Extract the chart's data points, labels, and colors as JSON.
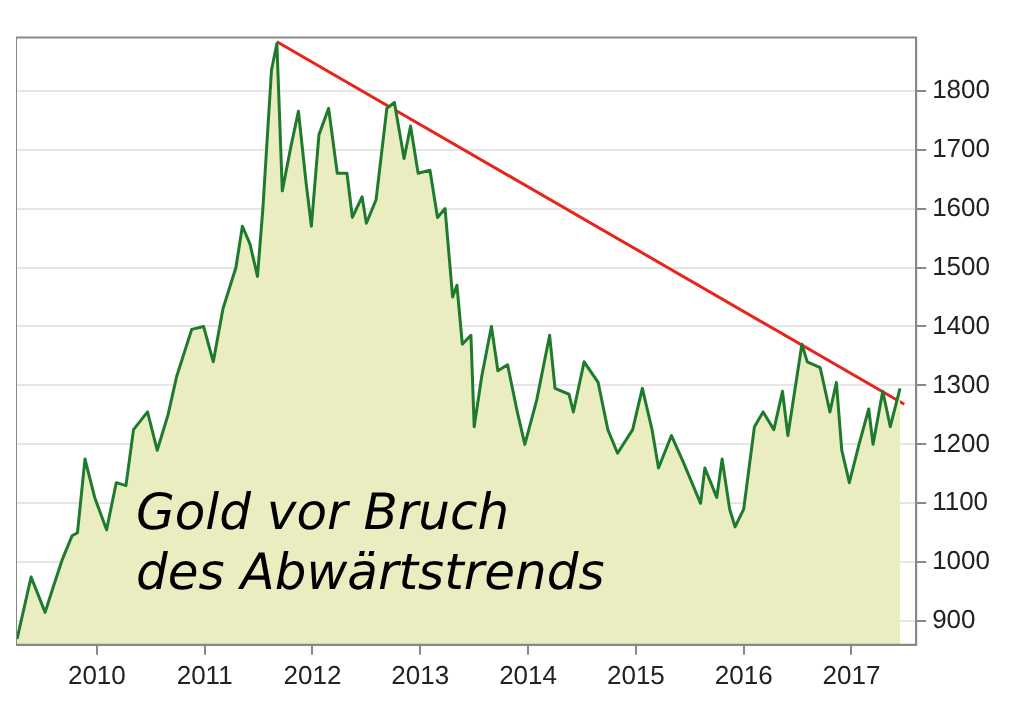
{
  "chart_data": {
    "type": "area",
    "xlim": [
      2009.25,
      2017.6
    ],
    "ylim": [
      860,
      1890
    ],
    "xticks": [
      2010,
      2011,
      2012,
      2013,
      2014,
      2015,
      2016,
      2017
    ],
    "yticks": [
      900,
      1000,
      1100,
      1200,
      1300,
      1400,
      1500,
      1600,
      1700,
      1800
    ],
    "grid": "y",
    "legend": false,
    "series": [
      {
        "color": "#1e7b2e",
        "x": [
          2009.26,
          2009.39,
          2009.52,
          2009.59,
          2009.68,
          2009.77,
          2009.82,
          2009.89,
          2009.98,
          2010.09,
          2010.18,
          2010.27,
          2010.34,
          2010.47,
          2010.56,
          2010.66,
          2010.74,
          2010.88,
          2010.99,
          2011.08,
          2011.17,
          2011.29,
          2011.35,
          2011.42,
          2011.49,
          2011.54,
          2011.62,
          2011.67,
          2011.72,
          2011.8,
          2011.87,
          2011.94,
          2011.99,
          2012.06,
          2012.15,
          2012.23,
          2012.32,
          2012.37,
          2012.46,
          2012.5,
          2012.59,
          2012.69,
          2012.76,
          2012.85,
          2012.91,
          2012.98,
          2013.09,
          2013.16,
          2013.23,
          2013.3,
          2013.34,
          2013.39,
          2013.47,
          2013.5,
          2013.57,
          2013.66,
          2013.72,
          2013.81,
          2013.9,
          2013.97,
          2014.08,
          2014.2,
          2014.25,
          2014.38,
          2014.42,
          2014.52,
          2014.65,
          2014.74,
          2014.83,
          2014.97,
          2015.06,
          2015.15,
          2015.21,
          2015.33,
          2015.44,
          2015.6,
          2015.64,
          2015.75,
          2015.8,
          2015.87,
          2015.92,
          2016.0,
          2016.1,
          2016.18,
          2016.28,
          2016.36,
          2016.41,
          2016.54,
          2016.59,
          2016.71,
          2016.8,
          2016.86,
          2016.91,
          2016.98,
          2017.07,
          2017.16,
          2017.2,
          2017.29,
          2017.36,
          2017.45
        ],
        "values": [
          870,
          975,
          915,
          955,
          1005,
          1045,
          1050,
          1175,
          1110,
          1055,
          1135,
          1130,
          1225,
          1255,
          1190,
          1250,
          1315,
          1395,
          1400,
          1340,
          1430,
          1500,
          1570,
          1540,
          1485,
          1600,
          1835,
          1880,
          1630,
          1705,
          1765,
          1645,
          1570,
          1725,
          1770,
          1660,
          1660,
          1585,
          1620,
          1575,
          1615,
          1770,
          1780,
          1685,
          1740,
          1660,
          1665,
          1585,
          1600,
          1450,
          1470,
          1370,
          1385,
          1230,
          1315,
          1400,
          1325,
          1335,
          1255,
          1200,
          1275,
          1385,
          1295,
          1285,
          1255,
          1340,
          1305,
          1225,
          1185,
          1225,
          1295,
          1225,
          1160,
          1215,
          1170,
          1100,
          1160,
          1110,
          1175,
          1090,
          1060,
          1090,
          1230,
          1255,
          1225,
          1290,
          1215,
          1370,
          1340,
          1330,
          1255,
          1305,
          1190,
          1135,
          1200,
          1260,
          1200,
          1290,
          1230,
          1295
        ]
      },
      {
        "type": "line",
        "color": "#e8241c",
        "x": [
          2011.67,
          2017.49
        ],
        "values": [
          1883,
          1268
        ]
      }
    ],
    "annotations": [
      "Gold vor Bruch\ndes Abwärtstrends"
    ]
  }
}
